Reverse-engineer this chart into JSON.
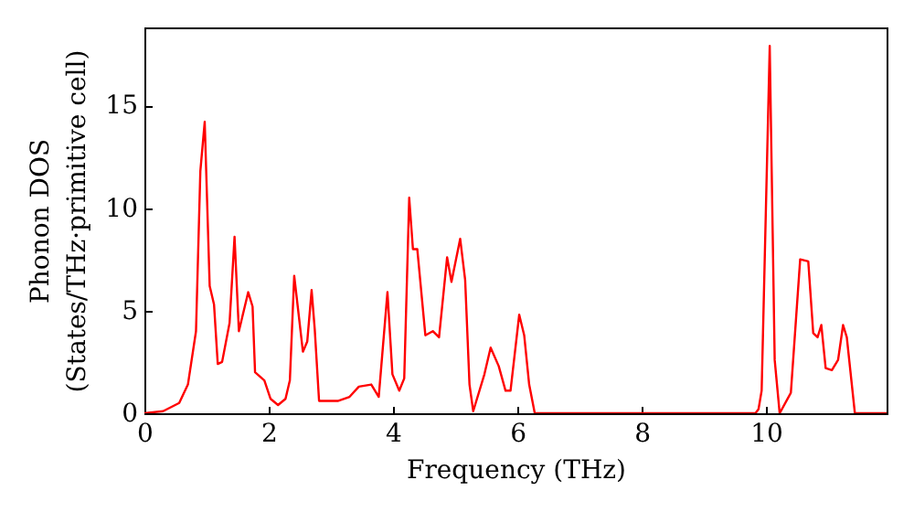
{
  "chart_data": {
    "type": "line",
    "xlabel": "Frequency (THz)",
    "ylabel": "Phonon DOS\n(States/THz·primitive cell)",
    "xlim": [
      0,
      11.94
    ],
    "ylim": [
      0,
      18.8
    ],
    "xticks": [
      0,
      2,
      4,
      6,
      8,
      10
    ],
    "yticks": [
      0,
      5,
      10,
      15
    ],
    "grid": false,
    "marker": "none",
    "line_style": "solid",
    "x": [
      0,
      0.3,
      0.56,
      0.7,
      0.83,
      0.9,
      0.97,
      1.05,
      1.12,
      1.18,
      1.25,
      1.37,
      1.45,
      1.52,
      1.67,
      1.74,
      1.78,
      1.93,
      2.03,
      2.15,
      2.27,
      2.34,
      2.41,
      2.55,
      2.62,
      2.69,
      2.74,
      2.81,
      3.11,
      3.3,
      3.45,
      3.65,
      3.77,
      3.91,
      3.99,
      4.1,
      4.18,
      4.26,
      4.32,
      4.39,
      4.52,
      4.64,
      4.74,
      4.87,
      4.94,
      5.08,
      5.16,
      5.23,
      5.29,
      5.47,
      5.57,
      5.7,
      5.81,
      5.89,
      6.03,
      6.11,
      6.19,
      6.28,
      9.83,
      9.88,
      9.93,
      10.06,
      10.14,
      10.22,
      10.4,
      10.55,
      10.68,
      10.76,
      10.83,
      10.89,
      10.96,
      11.06,
      11.16,
      11.24,
      11.3,
      11.43,
      11.94
    ],
    "series": [
      {
        "color": "#ff0000",
        "values": [
          0,
          0.1,
          0.5,
          1.4,
          4.0,
          11.8,
          14.2,
          6.2,
          5.3,
          2.4,
          2.5,
          4.4,
          8.6,
          4.0,
          5.9,
          5.2,
          2.0,
          1.6,
          0.7,
          0.4,
          0.7,
          1.6,
          6.7,
          3.0,
          3.5,
          6.0,
          4.1,
          0.6,
          0.6,
          0.8,
          1.3,
          1.4,
          0.8,
          5.9,
          1.9,
          1.1,
          1.7,
          10.5,
          8.0,
          8.0,
          3.8,
          4.0,
          3.7,
          7.6,
          6.4,
          8.5,
          6.5,
          1.4,
          0.1,
          1.9,
          3.2,
          2.3,
          1.1,
          1.1,
          4.8,
          3.8,
          1.4,
          0,
          0,
          0.2,
          1.1,
          17.9,
          2.6,
          0,
          1.0,
          7.5,
          7.4,
          3.9,
          3.7,
          4.3,
          2.2,
          2.1,
          2.6,
          4.3,
          3.7,
          0,
          0
        ]
      }
    ]
  }
}
